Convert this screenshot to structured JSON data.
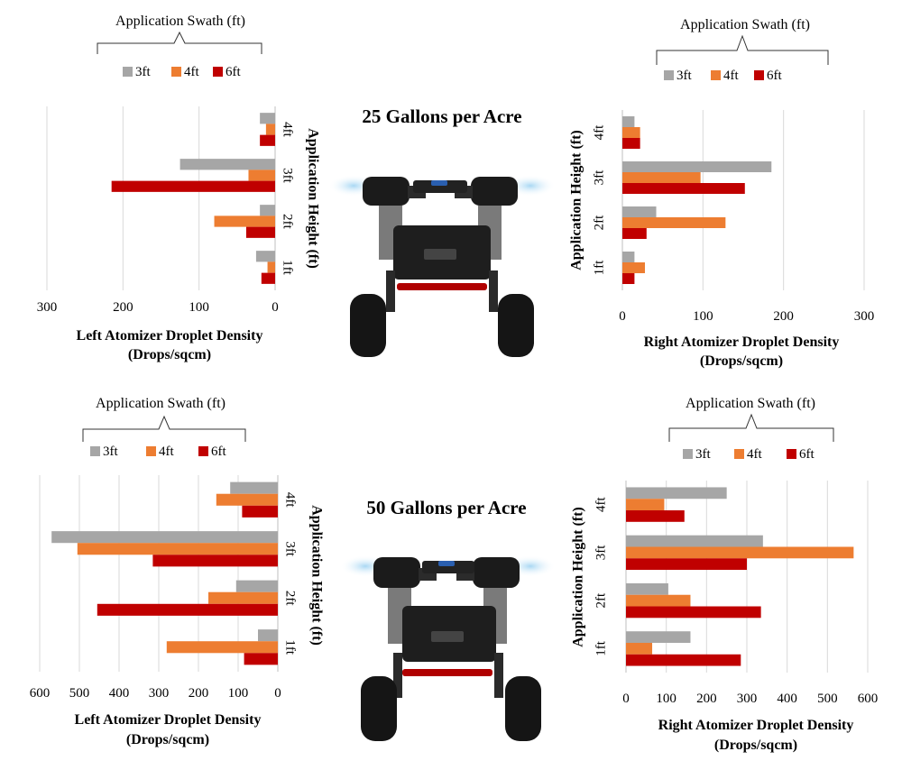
{
  "colors": {
    "3ft": "#a6a6a6",
    "4ft": "#ed7d31",
    "6ft": "#c00000",
    "grid": "#d9d9d9",
    "axis": "#bfbfbf"
  },
  "titles": {
    "top": "25 Gallons per Acre",
    "bottom": "50 Gallons per Acre"
  },
  "robot_icon": "sprayer-robot-icon",
  "chart_data": [
    {
      "type": "bar",
      "orientation": "horizontal",
      "direction": "reversed",
      "legend_title": "Application Swath (ft)",
      "xlabel": "Left  Atomizer Droplet Density",
      "xlabel_unit": "(Drops/sqcm)",
      "ylabel": "Application Height (ft)",
      "categories": [
        "4ft",
        "3ft",
        "2ft",
        "1ft"
      ],
      "xlim": [
        0,
        300
      ],
      "xticks": [
        "300",
        "200",
        "100",
        "0"
      ],
      "tick_values": [
        300,
        200,
        100,
        0
      ],
      "series": [
        {
          "name": "3ft",
          "values": [
            20,
            125,
            20,
            25
          ]
        },
        {
          "name": "4ft",
          "values": [
            12,
            35,
            80,
            10
          ]
        },
        {
          "name": "6ft",
          "values": [
            20,
            215,
            38,
            18
          ]
        }
      ]
    },
    {
      "type": "bar",
      "orientation": "horizontal",
      "direction": "normal",
      "legend_title": "Application Swath (ft)",
      "xlabel": "Right Atomizer Droplet Density",
      "xlabel_unit": "(Drops/sqcm)",
      "ylabel": "Application Height (ft)",
      "categories": [
        "4ft",
        "3ft",
        "2ft",
        "1ft"
      ],
      "xlim": [
        0,
        300
      ],
      "xticks": [
        "0",
        "100",
        "200",
        "300"
      ],
      "tick_values": [
        0,
        100,
        200,
        300
      ],
      "series": [
        {
          "name": "3ft",
          "values": [
            15,
            185,
            42,
            15
          ]
        },
        {
          "name": "4ft",
          "values": [
            22,
            97,
            128,
            28
          ]
        },
        {
          "name": "6ft",
          "values": [
            22,
            152,
            30,
            15
          ]
        }
      ]
    },
    {
      "type": "bar",
      "orientation": "horizontal",
      "direction": "reversed",
      "legend_title": "Application Swath (ft)",
      "xlabel": "Left  Atomizer Droplet Density",
      "xlabel_unit": "(Drops/sqcm)",
      "ylabel": "Application Height (ft)",
      "categories": [
        "4ft",
        "3ft",
        "2ft",
        "1ft"
      ],
      "xlim": [
        0,
        600
      ],
      "xticks": [
        "600",
        "500",
        "400",
        "300",
        "200",
        "100",
        "0"
      ],
      "tick_values": [
        600,
        500,
        400,
        300,
        200,
        100,
        0
      ],
      "series": [
        {
          "name": "3ft",
          "values": [
            120,
            570,
            105,
            50
          ]
        },
        {
          "name": "4ft",
          "values": [
            155,
            505,
            175,
            280
          ]
        },
        {
          "name": "6ft",
          "values": [
            90,
            315,
            455,
            85
          ]
        }
      ]
    },
    {
      "type": "bar",
      "orientation": "horizontal",
      "direction": "normal",
      "legend_title": "Application Swath (ft)",
      "xlabel": "Right Atomizer Droplet Density",
      "xlabel_unit": "(Drops/sqcm)",
      "ylabel": "Application Height (ft)",
      "categories": [
        "4ft",
        "3ft",
        "2ft",
        "1ft"
      ],
      "xlim": [
        0,
        600
      ],
      "xticks": [
        "0",
        "100",
        "200",
        "300",
        "400",
        "500",
        "600"
      ],
      "tick_values": [
        0,
        100,
        200,
        300,
        400,
        500,
        600
      ],
      "series": [
        {
          "name": "3ft",
          "values": [
            250,
            340,
            105,
            160
          ]
        },
        {
          "name": "4ft",
          "values": [
            95,
            565,
            160,
            65
          ]
        },
        {
          "name": "6ft",
          "values": [
            145,
            300,
            335,
            285
          ]
        }
      ]
    }
  ]
}
